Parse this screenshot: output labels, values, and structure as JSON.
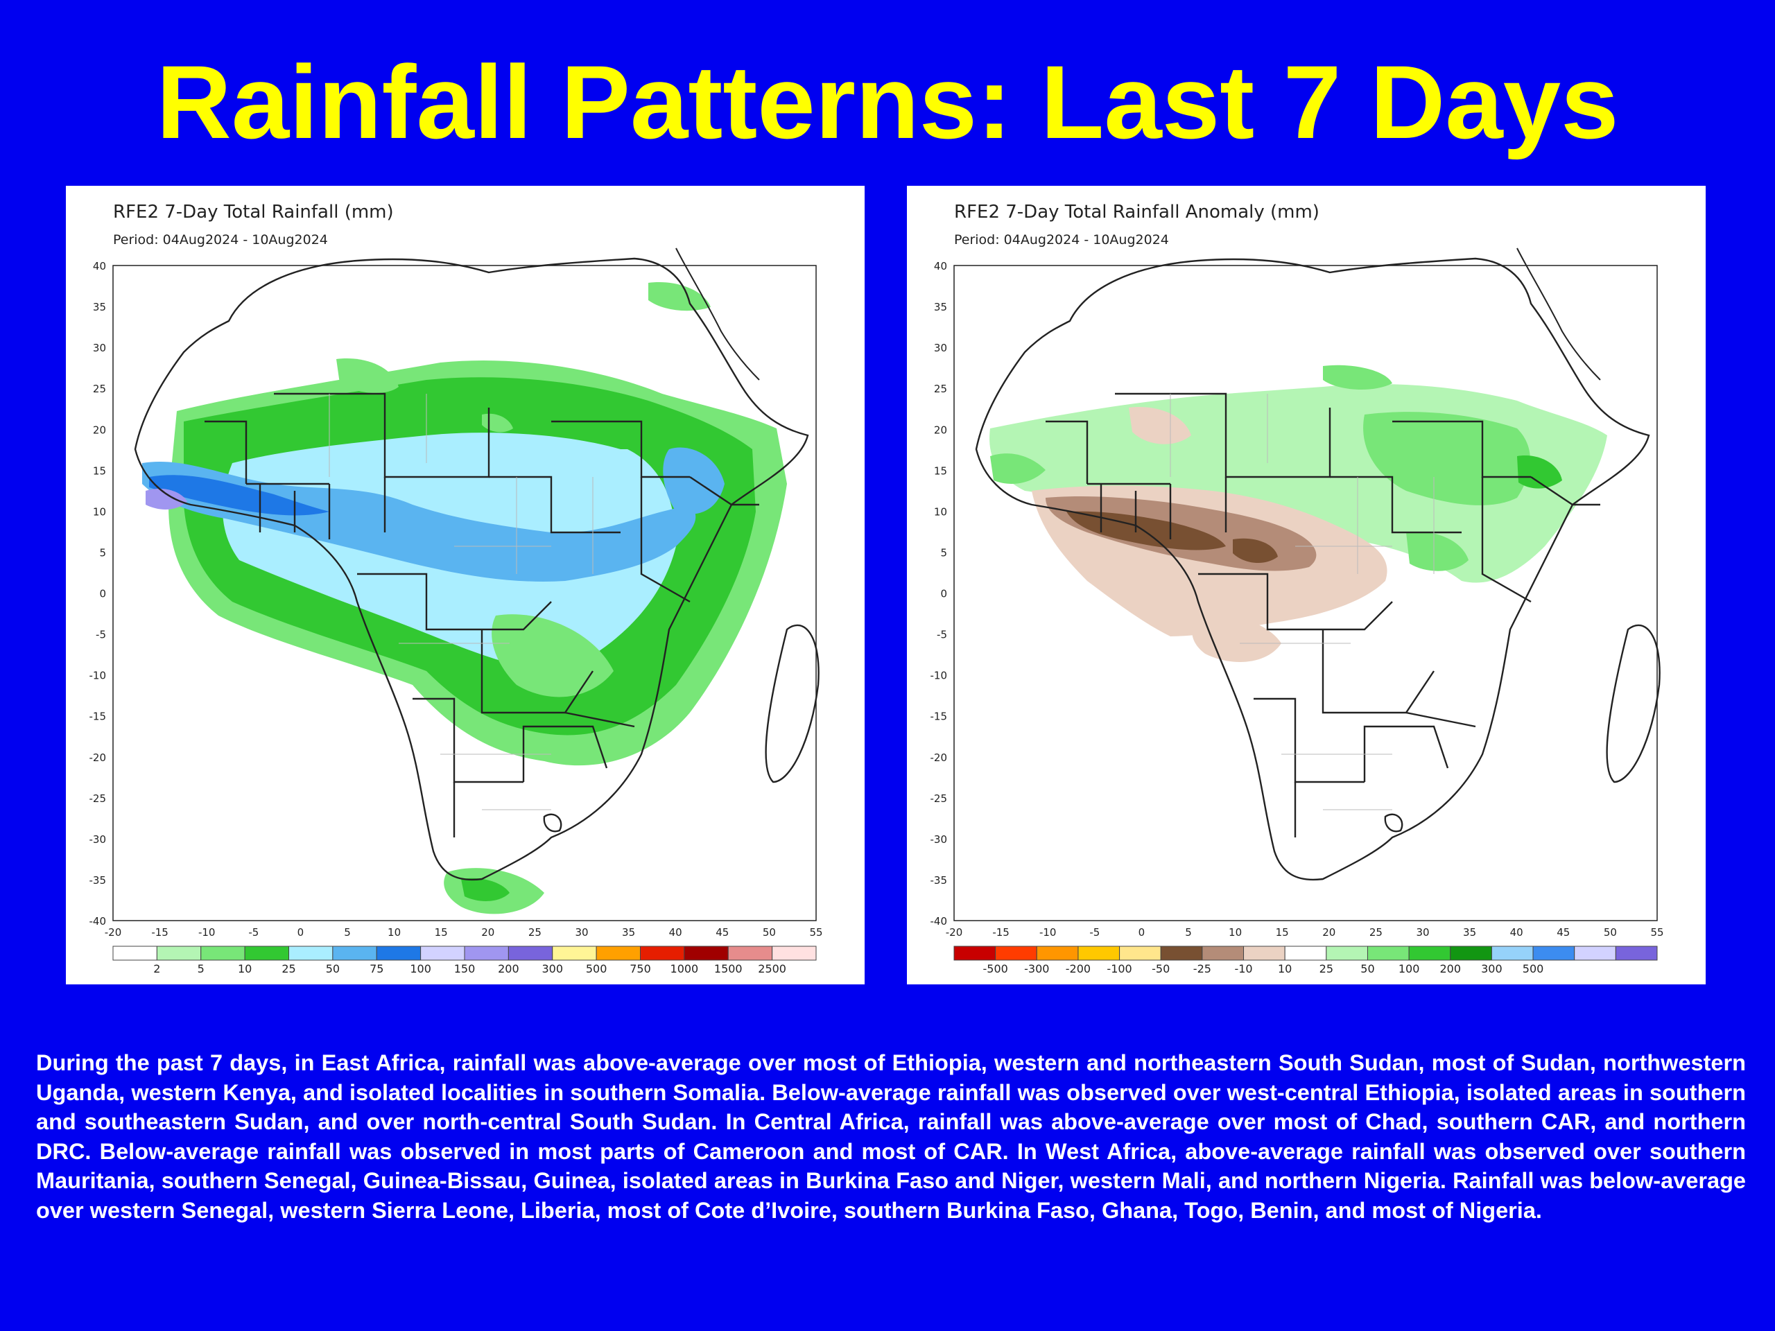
{
  "slide": {
    "title": "Rainfall Patterns: Last 7 Days",
    "caption": "During the past 7 days, in East Africa, rainfall was above-average over most of Ethiopia, western and northeastern South Sudan, most of Sudan, northwestern Uganda, western Kenya, and isolated localities in southern Somalia. Below-average rainfall was observed over west-central Ethiopia, isolated areas in southern and southeastern Sudan, and over north-central South Sudan. In Central Africa, rainfall was above-average over most of Chad, southern CAR, and northern DRC. Below-average rainfall was observed in most parts of Cameroon and most of CAR. In West Africa, above-average rainfall was observed over southern Mauritania, southern Senegal, Guinea-Bissau, Guinea, isolated areas in Burkina Faso and Niger, western Mali, and northern Nigeria. Rainfall was below-average over western Senegal, western Sierra Leone, Liberia, most of Cote d’Ivoire, southern Burkina Faso, Ghana, Togo, Benin, and most of Nigeria.",
    "background_color": "#0000f0",
    "title_color": "#ffff00"
  },
  "maps": [
    {
      "id": "total",
      "title": "RFE2 7-Day Total Rainfall (mm)",
      "period": "Period: 04Aug2024 - 10Aug2024",
      "x_ticks": [
        "-20",
        "-15",
        "-10",
        "-5",
        "0",
        "5",
        "10",
        "15",
        "20",
        "25",
        "30",
        "35",
        "40",
        "45",
        "50",
        "55"
      ],
      "y_ticks": [
        "40",
        "35",
        "30",
        "25",
        "20",
        "15",
        "10",
        "5",
        "0",
        "-5",
        "-10",
        "-15",
        "-20",
        "-25",
        "-30",
        "-35",
        "-40"
      ],
      "legend_colors": [
        "#ffffff",
        "#b4f5b4",
        "#78e678",
        "#32c832",
        "#aaeeff",
        "#5ab4f0",
        "#1e78e6",
        "#d2d2ff",
        "#a096f0",
        "#7864dc",
        "#fff596",
        "#ffa000",
        "#e61e00",
        "#a00000",
        "#e68c8c",
        "#ffe1e1"
      ],
      "legend_labels": [
        "2",
        "5",
        "10",
        "25",
        "50",
        "75",
        "100",
        "150",
        "200",
        "300",
        "500",
        "750",
        "1000",
        "1500",
        "2500"
      ]
    },
    {
      "id": "anomaly",
      "title": "RFE2 7-Day Total Rainfall Anomaly (mm)",
      "period": "Period: 04Aug2024 - 10Aug2024",
      "x_ticks": [
        "-20",
        "-15",
        "-10",
        "-5",
        "0",
        "5",
        "10",
        "15",
        "20",
        "25",
        "30",
        "35",
        "40",
        "45",
        "50",
        "55"
      ],
      "y_ticks": [
        "40",
        "35",
        "30",
        "25",
        "20",
        "15",
        "10",
        "5",
        "0",
        "-5",
        "-10",
        "-15",
        "-20",
        "-25",
        "-30",
        "-35",
        "-40"
      ],
      "legend_colors": [
        "#c80000",
        "#ff3c00",
        "#ff9600",
        "#ffc800",
        "#ffe68c",
        "#785032",
        "#b48c78",
        "#ebd2c3",
        "#ffffff",
        "#b4f5b4",
        "#78e678",
        "#32c832",
        "#129612",
        "#96d2fa",
        "#3c8cf0",
        "#d2d2ff",
        "#7864dc"
      ],
      "legend_labels": [
        "-500",
        "-300",
        "-200",
        "-100",
        "-50",
        "-25",
        "-10",
        "10",
        "25",
        "50",
        "100",
        "200",
        "300",
        "500"
      ]
    }
  ]
}
